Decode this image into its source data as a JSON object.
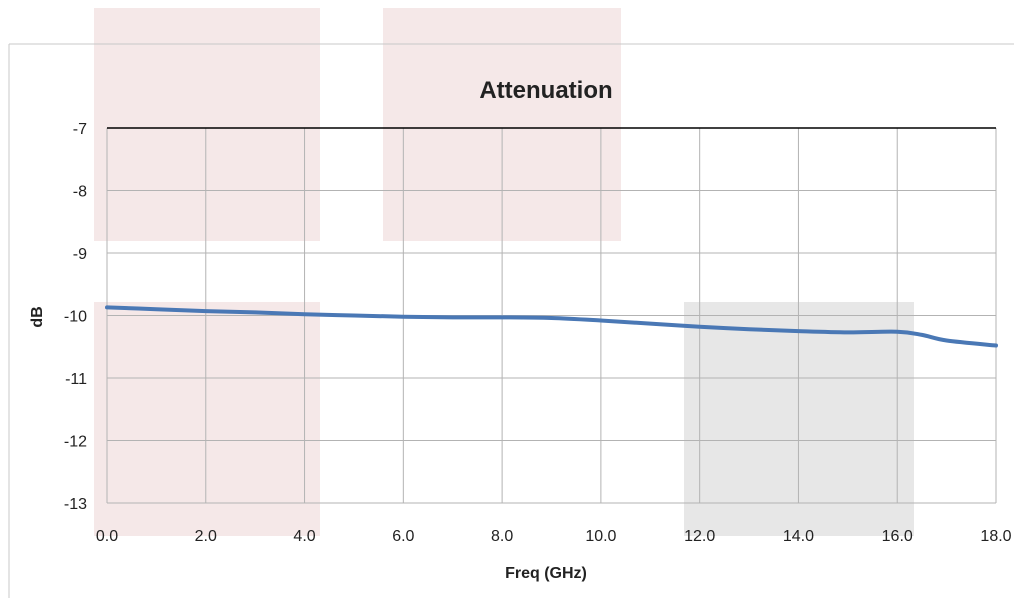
{
  "chart_data": {
    "type": "line",
    "title": "Attenuation",
    "xlabel": "Freq (GHz)",
    "ylabel": "dB",
    "xlim": [
      0,
      18
    ],
    "ylim": [
      -13,
      -7
    ],
    "x_ticks": [
      "0.0",
      "2.0",
      "4.0",
      "6.0",
      "8.0",
      "10.0",
      "12.0",
      "14.0",
      "16.0",
      "18.0"
    ],
    "y_ticks": [
      "-7",
      "-8",
      "-9",
      "-10",
      "-11",
      "-12",
      "-13"
    ],
    "grid": true,
    "legend": "none",
    "series": [
      {
        "color": "#4a78b5",
        "x": [
          0,
          1,
          2,
          3,
          4,
          5,
          6,
          7,
          8,
          9,
          10,
          11,
          12,
          13,
          14,
          15,
          16,
          16.5,
          17,
          18
        ],
        "y": [
          -9.87,
          -9.9,
          -9.93,
          -9.95,
          -9.98,
          -10.0,
          -10.02,
          -10.03,
          -10.03,
          -10.04,
          -10.08,
          -10.13,
          -10.18,
          -10.22,
          -10.25,
          -10.27,
          -10.26,
          -10.31,
          -10.4,
          -10.48
        ]
      }
    ],
    "colors": {
      "grid": "#b3b3b3",
      "frame": "#000000",
      "highlight_pink": "#f0dcdc",
      "highlight_gray": "#e3e3e3"
    }
  }
}
